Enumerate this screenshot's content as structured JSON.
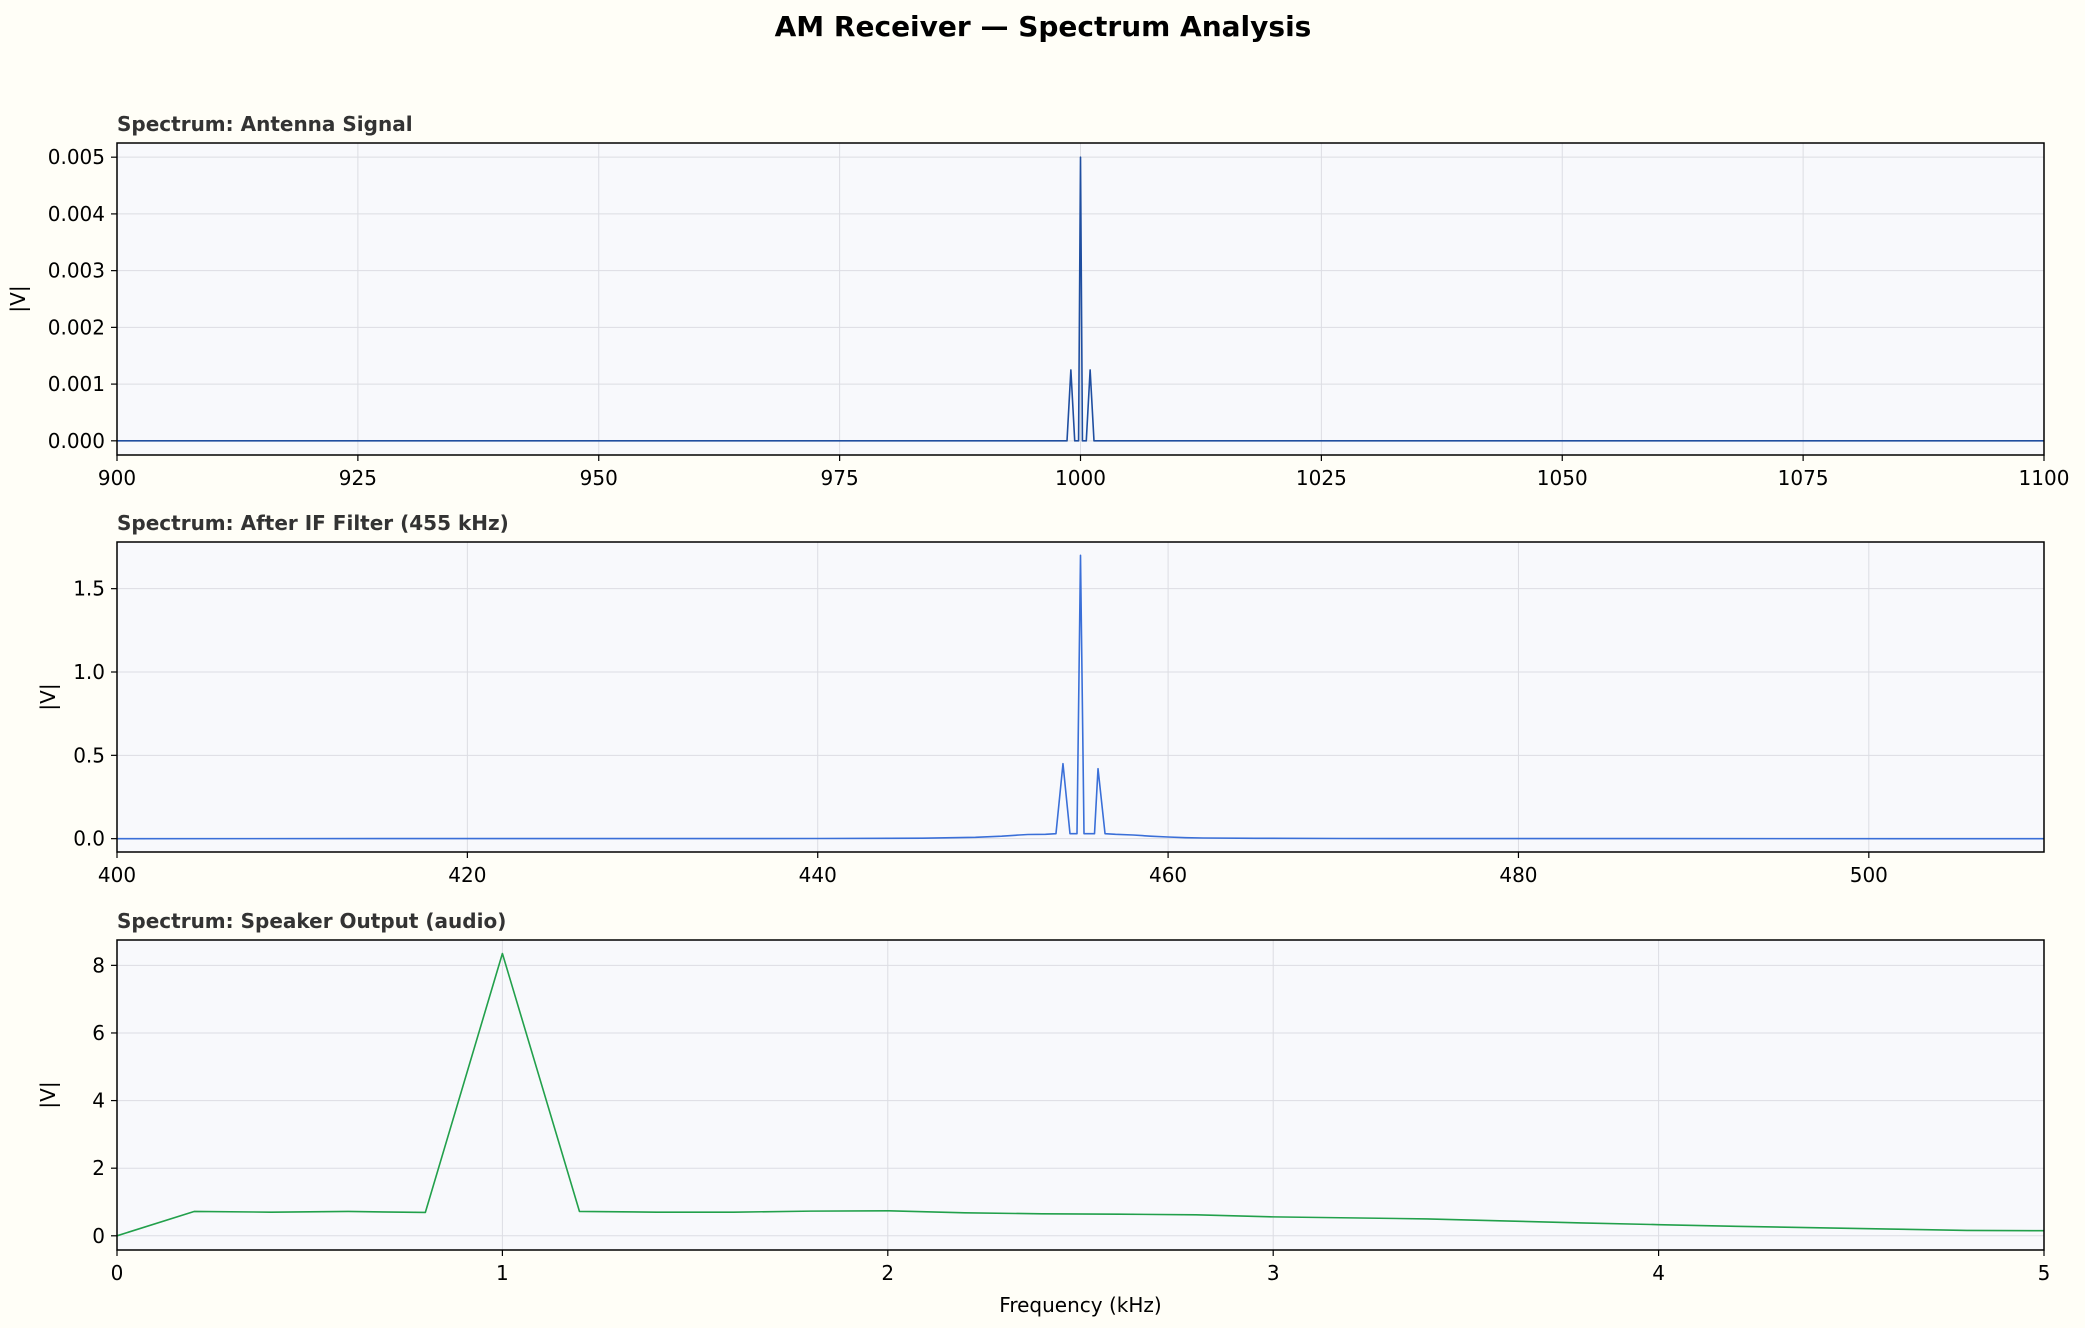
{
  "figure": {
    "title": "AM Receiver — Spectrum Analysis"
  },
  "chart_data": [
    {
      "type": "line",
      "title": "Spectrum: Antenna Signal",
      "xlabel": "",
      "ylabel": "|V|",
      "xlim": [
        900,
        1100
      ],
      "ylim": [
        -0.00025,
        0.00525
      ],
      "xticks": [
        900,
        925,
        950,
        975,
        1000,
        1025,
        1050,
        1075,
        1100
      ],
      "xtick_labels": [
        "900",
        "925",
        "950",
        "975",
        "1000",
        "1025",
        "1050",
        "1075",
        "1100"
      ],
      "yticks": [
        0,
        0.001,
        0.002,
        0.003,
        0.004,
        0.005
      ],
      "ytick_labels": [
        "0.000",
        "0.001",
        "0.002",
        "0.003",
        "0.004",
        "0.005"
      ],
      "grid": true,
      "color": "#1f4ea0",
      "series": [
        {
          "x": [
            900,
            998.6,
            999.0,
            999.4,
            999.6,
            999.8,
            1000.0,
            1000.2,
            1000.4,
            1000.6,
            1001.0,
            1001.4,
            1100
          ],
          "y": [
            0,
            0,
            0.00125,
            0,
            0,
            0,
            0.005,
            0,
            0,
            0,
            0.00125,
            0,
            0
          ]
        }
      ]
    },
    {
      "type": "line",
      "title": "Spectrum: After IF Filter (455 kHz)",
      "xlabel": "",
      "ylabel": "|V|",
      "xlim": [
        400,
        510
      ],
      "ylim": [
        -0.08,
        1.78
      ],
      "xticks": [
        400,
        420,
        440,
        460,
        480,
        500
      ],
      "xtick_labels": [
        "400",
        "420",
        "440",
        "460",
        "480",
        "500"
      ],
      "yticks": [
        0,
        0.5,
        1.0,
        1.5
      ],
      "ytick_labels": [
        "0.0",
        "0.5",
        "1.0",
        "1.5"
      ],
      "grid": true,
      "color": "#3a6fd8",
      "series": [
        {
          "x": [
            400,
            440,
            446,
            449,
            450.5,
            451.5,
            452,
            453,
            453.6,
            454,
            454.4,
            454.6,
            454.8,
            455,
            455.2,
            455.4,
            455.8,
            456,
            456.4,
            457,
            458,
            459,
            460,
            461,
            462,
            465,
            470,
            480,
            510
          ],
          "y": [
            0,
            0.001,
            0.003,
            0.008,
            0.015,
            0.022,
            0.025,
            0.026,
            0.03,
            0.45,
            0.03,
            0.03,
            0.03,
            1.7,
            0.03,
            0.03,
            0.03,
            0.42,
            0.03,
            0.026,
            0.022,
            0.015,
            0.01,
            0.006,
            0.004,
            0.002,
            0.001,
            0.0005,
            0
          ]
        }
      ]
    },
    {
      "type": "line",
      "title": "Spectrum: Speaker Output (audio)",
      "xlabel": "Frequency (kHz)",
      "ylabel": "|V|",
      "xlim": [
        0,
        5
      ],
      "ylim": [
        -0.42,
        8.75
      ],
      "xticks": [
        0,
        1,
        2,
        3,
        4,
        5
      ],
      "xtick_labels": [
        "0",
        "1",
        "2",
        "3",
        "4",
        "5"
      ],
      "yticks": [
        0,
        2,
        4,
        6,
        8
      ],
      "ytick_labels": [
        "0",
        "2",
        "4",
        "6",
        "8"
      ],
      "grid": true,
      "color": "#22a04b",
      "series": [
        {
          "x": [
            0,
            0.2,
            0.4,
            0.6,
            0.8,
            1.0,
            1.2,
            1.4,
            1.6,
            1.8,
            2.0,
            2.2,
            2.4,
            2.6,
            2.8,
            3.0,
            3.2,
            3.4,
            3.6,
            3.8,
            4.0,
            4.2,
            4.4,
            4.6,
            4.8,
            5.0
          ],
          "y": [
            0,
            0.72,
            0.7,
            0.72,
            0.69,
            8.35,
            0.72,
            0.7,
            0.7,
            0.73,
            0.74,
            0.68,
            0.65,
            0.64,
            0.62,
            0.56,
            0.53,
            0.5,
            0.44,
            0.38,
            0.33,
            0.28,
            0.24,
            0.2,
            0.16,
            0.15
          ]
        }
      ]
    }
  ]
}
